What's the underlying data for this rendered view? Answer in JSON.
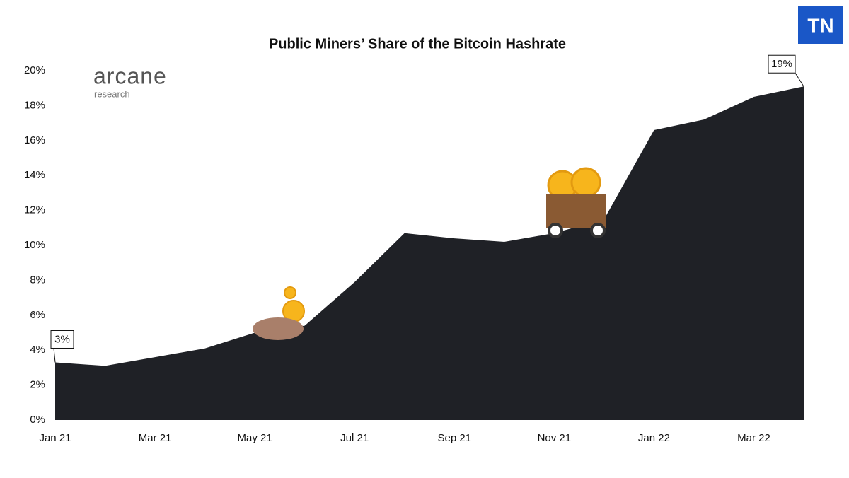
{
  "chart_data": {
    "type": "area",
    "title": "Public Miners’ Share of the Bitcoin Hashrate",
    "categories": [
      "Jan 21",
      null,
      "Mar 21",
      null,
      "May 21",
      null,
      "Jul 21",
      null,
      "Sep 21",
      null,
      "Nov 21",
      null,
      "Jan 22",
      null,
      "Mar 22",
      null
    ],
    "values": [
      3.3,
      3.1,
      3.6,
      4.1,
      5.0,
      5.4,
      7.9,
      10.7,
      10.4,
      10.2,
      10.7,
      11.5,
      16.6,
      17.2,
      18.5,
      19.1
    ],
    "value_labels": [
      "3%",
      null,
      null,
      null,
      null,
      null,
      null,
      null,
      null,
      null,
      null,
      null,
      null,
      null,
      null,
      "19%"
    ],
    "color": "#1f2126",
    "ylim": [
      0,
      20
    ],
    "yticks": [
      {
        "value": 0,
        "label": "0%"
      },
      {
        "value": 2,
        "label": "2%"
      },
      {
        "value": 4,
        "label": "4%"
      },
      {
        "value": 6,
        "label": "6%"
      },
      {
        "value": 8,
        "label": "8%"
      },
      {
        "value": 10,
        "label": "10%"
      },
      {
        "value": 12,
        "label": "12%"
      },
      {
        "value": 14,
        "label": "14%"
      },
      {
        "value": 16,
        "label": "16%"
      },
      {
        "value": 18,
        "label": "18%"
      },
      {
        "value": 20,
        "label": "20%"
      }
    ],
    "grid": false,
    "annotations": [
      "arcane",
      "research",
      "TN"
    ]
  }
}
